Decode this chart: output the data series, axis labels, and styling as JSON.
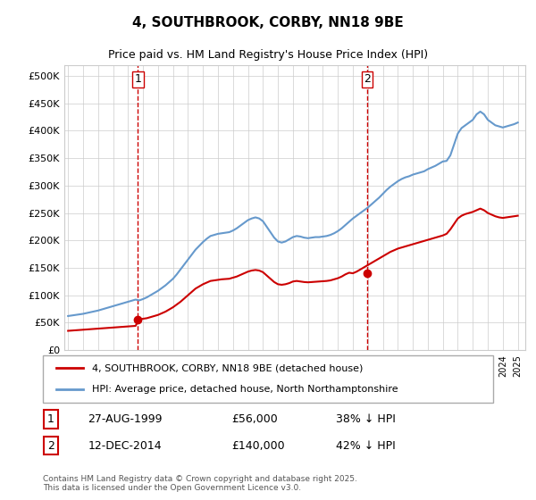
{
  "title": "4, SOUTHBROOK, CORBY, NN18 9BE",
  "subtitle": "Price paid vs. HM Land Registry's House Price Index (HPI)",
  "legend_line1": "4, SOUTHBROOK, CORBY, NN18 9BE (detached house)",
  "legend_line2": "HPI: Average price, detached house, North Northamptonshire",
  "annotation1_label": "1",
  "annotation1_date": "27-AUG-1999",
  "annotation1_price": "£56,000",
  "annotation1_hpi": "38% ↓ HPI",
  "annotation2_label": "2",
  "annotation2_date": "12-DEC-2014",
  "annotation2_price": "£140,000",
  "annotation2_hpi": "42% ↓ HPI",
  "footer": "Contains HM Land Registry data © Crown copyright and database right 2025.\nThis data is licensed under the Open Government Licence v3.0.",
  "red_color": "#cc0000",
  "blue_color": "#6699cc",
  "vline_color": "#cc0000",
  "grid_color": "#cccccc",
  "background_color": "#ffffff",
  "ylim": [
    0,
    520000
  ],
  "yticks": [
    0,
    50000,
    100000,
    150000,
    200000,
    250000,
    300000,
    350000,
    400000,
    450000,
    500000
  ],
  "xstart_year": 1995,
  "xend_year": 2025,
  "sale1_year": 1999.65,
  "sale2_year": 2014.95,
  "hpi_years": [
    1995,
    1995.25,
    1995.5,
    1995.75,
    1996,
    1996.25,
    1996.5,
    1996.75,
    1997,
    1997.25,
    1997.5,
    1997.75,
    1998,
    1998.25,
    1998.5,
    1998.75,
    1999,
    1999.25,
    1999.5,
    1999.75,
    2000,
    2000.25,
    2000.5,
    2000.75,
    2001,
    2001.25,
    2001.5,
    2001.75,
    2002,
    2002.25,
    2002.5,
    2002.75,
    2003,
    2003.25,
    2003.5,
    2003.75,
    2004,
    2004.25,
    2004.5,
    2004.75,
    2005,
    2005.25,
    2005.5,
    2005.75,
    2006,
    2006.25,
    2006.5,
    2006.75,
    2007,
    2007.25,
    2007.5,
    2007.75,
    2008,
    2008.25,
    2008.5,
    2008.75,
    2009,
    2009.25,
    2009.5,
    2009.75,
    2010,
    2010.25,
    2010.5,
    2010.75,
    2011,
    2011.25,
    2011.5,
    2011.75,
    2012,
    2012.25,
    2012.5,
    2012.75,
    2013,
    2013.25,
    2013.5,
    2013.75,
    2014,
    2014.25,
    2014.5,
    2014.75,
    2015,
    2015.25,
    2015.5,
    2015.75,
    2016,
    2016.25,
    2016.5,
    2016.75,
    2017,
    2017.25,
    2017.5,
    2017.75,
    2018,
    2018.25,
    2018.5,
    2018.75,
    2019,
    2019.25,
    2019.5,
    2019.75,
    2020,
    2020.25,
    2020.5,
    2020.75,
    2021,
    2021.25,
    2021.5,
    2021.75,
    2022,
    2022.25,
    2022.5,
    2022.75,
    2023,
    2023.25,
    2023.5,
    2023.75,
    2024,
    2024.25,
    2024.5,
    2024.75,
    2025
  ],
  "hpi_values": [
    62000,
    63000,
    64000,
    65000,
    66000,
    67500,
    69000,
    70500,
    72000,
    74000,
    76000,
    78000,
    80000,
    82000,
    84000,
    86000,
    88000,
    90000,
    92000,
    90500,
    93000,
    96000,
    100000,
    104000,
    108000,
    113000,
    118000,
    124000,
    130000,
    138000,
    147000,
    156000,
    165000,
    174000,
    183000,
    190000,
    197000,
    203000,
    208000,
    210000,
    212000,
    213000,
    214000,
    215000,
    218000,
    222000,
    227000,
    232000,
    237000,
    240000,
    242000,
    240000,
    235000,
    225000,
    215000,
    205000,
    198000,
    196000,
    198000,
    202000,
    206000,
    208000,
    207000,
    205000,
    204000,
    205000,
    206000,
    206000,
    207000,
    208000,
    210000,
    213000,
    217000,
    222000,
    228000,
    234000,
    240000,
    245000,
    250000,
    255000,
    260000,
    266000,
    272000,
    278000,
    285000,
    292000,
    298000,
    303000,
    308000,
    312000,
    315000,
    317000,
    320000,
    322000,
    324000,
    326000,
    330000,
    333000,
    336000,
    340000,
    344000,
    345000,
    355000,
    375000,
    395000,
    405000,
    410000,
    415000,
    420000,
    430000,
    435000,
    430000,
    420000,
    415000,
    410000,
    408000,
    406000,
    408000,
    410000,
    412000,
    415000
  ],
  "red_years": [
    1995,
    1995.25,
    1995.5,
    1995.75,
    1996,
    1996.25,
    1996.5,
    1996.75,
    1997,
    1997.25,
    1997.5,
    1997.75,
    1998,
    1998.25,
    1998.5,
    1998.75,
    1999,
    1999.25,
    1999.5,
    1999.75,
    2000,
    2000.25,
    2000.5,
    2000.75,
    2001,
    2001.25,
    2001.5,
    2001.75,
    2002,
    2002.25,
    2002.5,
    2002.75,
    2003,
    2003.25,
    2003.5,
    2003.75,
    2004,
    2004.25,
    2004.5,
    2004.75,
    2005,
    2005.25,
    2005.5,
    2005.75,
    2006,
    2006.25,
    2006.5,
    2006.75,
    2007,
    2007.25,
    2007.5,
    2007.75,
    2008,
    2008.25,
    2008.5,
    2008.75,
    2009,
    2009.25,
    2009.5,
    2009.75,
    2010,
    2010.25,
    2010.5,
    2010.75,
    2011,
    2011.25,
    2011.5,
    2011.75,
    2012,
    2012.25,
    2012.5,
    2012.75,
    2013,
    2013.25,
    2013.5,
    2013.75,
    2014,
    2014.25,
    2014.5,
    2014.75,
    2015,
    2015.25,
    2015.5,
    2015.75,
    2016,
    2016.25,
    2016.5,
    2016.75,
    2017,
    2017.25,
    2017.5,
    2017.75,
    2018,
    2018.25,
    2018.5,
    2018.75,
    2019,
    2019.25,
    2019.5,
    2019.75,
    2020,
    2020.25,
    2020.5,
    2020.75,
    2021,
    2021.25,
    2021.5,
    2021.75,
    2022,
    2022.25,
    2022.5,
    2022.75,
    2023,
    2023.25,
    2023.5,
    2023.75,
    2024,
    2024.25,
    2024.5,
    2024.75,
    2025
  ],
  "red_values": [
    35000,
    35500,
    36000,
    36500,
    37000,
    37500,
    38000,
    38500,
    39000,
    39500,
    40000,
    40500,
    41000,
    41500,
    42000,
    42500,
    43000,
    43500,
    44000,
    56000,
    57000,
    58000,
    60000,
    62000,
    64000,
    67000,
    70000,
    74000,
    78000,
    83000,
    88000,
    94000,
    100000,
    106000,
    112000,
    116000,
    120000,
    123000,
    126000,
    127000,
    128000,
    129000,
    129500,
    130000,
    132000,
    134000,
    137000,
    140000,
    143000,
    145000,
    146000,
    145000,
    142000,
    136000,
    130000,
    124000,
    120000,
    119000,
    120000,
    122000,
    125000,
    126000,
    125000,
    124000,
    123500,
    124000,
    124500,
    125000,
    125500,
    126000,
    127000,
    129000,
    131000,
    134000,
    138000,
    141000,
    140000,
    143000,
    147000,
    151000,
    155000,
    159000,
    163000,
    167000,
    171000,
    175000,
    179000,
    182000,
    185000,
    187000,
    189000,
    191000,
    193000,
    195000,
    197000,
    199000,
    201000,
    203000,
    205000,
    207000,
    209000,
    212000,
    220000,
    230000,
    240000,
    245000,
    248000,
    250000,
    252000,
    255000,
    258000,
    255000,
    250000,
    247000,
    244000,
    242000,
    241000,
    242000,
    243000,
    244000,
    245000
  ]
}
